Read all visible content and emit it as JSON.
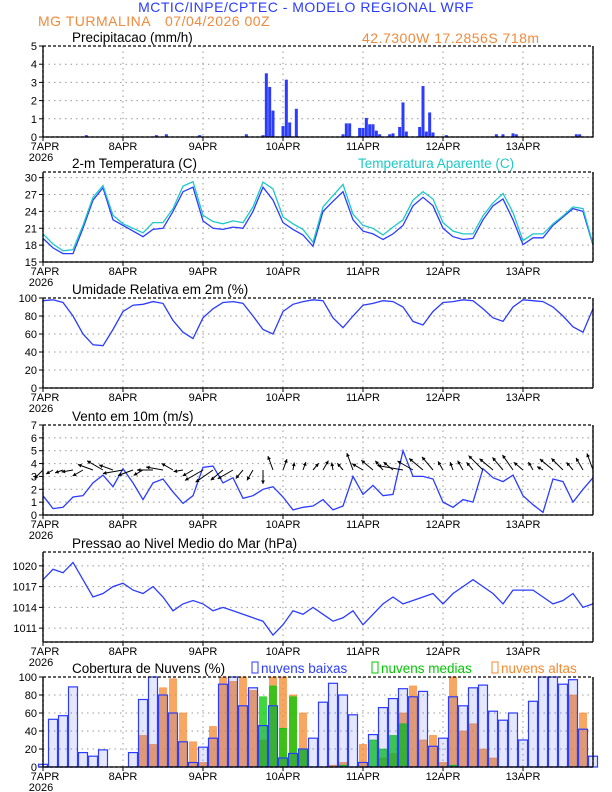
{
  "header": {
    "title": "MCTIC/INPE/CPTEC - MODELO REGIONAL WRF",
    "station": "MG TURMALINA",
    "run_date": "07/04/2026 00Z",
    "location": "42.7300W 17.2856S 718m"
  },
  "x_axis": {
    "day_labels": [
      "7APR",
      "8APR",
      "9APR",
      "10APR",
      "11APR",
      "12APR",
      "13APR"
    ],
    "year_label": "2026",
    "range": [
      "2026-04-07T00",
      "2026-04-13T21"
    ]
  },
  "colors": {
    "blue": "#2b3cff",
    "cyan": "#1ec8c8",
    "green": "#00c800",
    "orange": "#f5892f",
    "wind_arrow": "#000000"
  },
  "chart_data": [
    {
      "id": "precip",
      "type": "bar",
      "title": "Precipitacao (mm/h)",
      "ylim": [
        0,
        5
      ],
      "yticks": [
        0,
        1,
        2,
        3,
        4,
        5
      ],
      "grid": true,
      "bars": [
        {
          "t": "2026-04-07T13",
          "v": 0.1
        },
        {
          "t": "2026-04-08T10",
          "v": 0.1
        },
        {
          "t": "2026-04-08T13",
          "v": 0.15
        },
        {
          "t": "2026-04-08T23",
          "v": 0.1
        },
        {
          "t": "2026-04-09T13",
          "v": 0.15
        },
        {
          "t": "2026-04-09T18",
          "v": 0.1
        },
        {
          "t": "2026-04-09T19",
          "v": 3.5
        },
        {
          "t": "2026-04-09T20",
          "v": 2.75
        },
        {
          "t": "2026-04-09T21",
          "v": 1.45
        },
        {
          "t": "2026-04-10T00",
          "v": 0.6
        },
        {
          "t": "2026-04-10T01",
          "v": 3.15
        },
        {
          "t": "2026-04-10T02",
          "v": 0.8
        },
        {
          "t": "2026-04-10T04",
          "v": 1.55
        },
        {
          "t": "2026-04-10T18",
          "v": 0.15
        },
        {
          "t": "2026-04-10T19",
          "v": 0.75
        },
        {
          "t": "2026-04-10T20",
          "v": 0.75
        },
        {
          "t": "2026-04-10T23",
          "v": 0.5
        },
        {
          "t": "2026-04-11T00",
          "v": 0.5
        },
        {
          "t": "2026-04-11T01",
          "v": 1.05
        },
        {
          "t": "2026-04-11T02",
          "v": 0.7
        },
        {
          "t": "2026-04-11T03",
          "v": 0.7
        },
        {
          "t": "2026-04-11T04",
          "v": 0.35
        },
        {
          "t": "2026-04-11T05",
          "v": 0.15
        },
        {
          "t": "2026-04-11T08",
          "v": 0.15
        },
        {
          "t": "2026-04-11T09",
          "v": 0.2
        },
        {
          "t": "2026-04-11T11",
          "v": 0.55
        },
        {
          "t": "2026-04-11T12",
          "v": 1.9
        },
        {
          "t": "2026-04-11T13",
          "v": 0.3
        },
        {
          "t": "2026-04-11T17",
          "v": 0.55
        },
        {
          "t": "2026-04-11T18",
          "v": 2.8
        },
        {
          "t": "2026-04-11T19",
          "v": 0.3
        },
        {
          "t": "2026-04-11T20",
          "v": 1.35
        },
        {
          "t": "2026-04-11T21",
          "v": 0.25
        },
        {
          "t": "2026-04-12T01",
          "v": 0.1
        },
        {
          "t": "2026-04-12T16",
          "v": 0.15
        },
        {
          "t": "2026-04-12T18",
          "v": 0.15
        },
        {
          "t": "2026-04-12T21",
          "v": 0.2
        },
        {
          "t": "2026-04-12T22",
          "v": 0.15
        },
        {
          "t": "2026-04-13T16",
          "v": 0.15
        },
        {
          "t": "2026-04-13T17",
          "v": 0.15
        }
      ]
    },
    {
      "id": "temperature",
      "type": "line",
      "title": "2-m Temperatura (C)",
      "ylim": [
        15,
        31
      ],
      "yticks": [
        15,
        18,
        21,
        24,
        27,
        30
      ],
      "grid": true,
      "series": [
        {
          "name": "",
          "color_key": "blue",
          "values": [
            19.2,
            17.5,
            16.5,
            16.5,
            21,
            26,
            28.2,
            22.5,
            21.5,
            20.5,
            19.5,
            20.8,
            21,
            24,
            27.5,
            28.3,
            22.3,
            21,
            20.8,
            21.2,
            21,
            24,
            28.3,
            26,
            22,
            20.8,
            19.8,
            17.8,
            24,
            25.8,
            27.5,
            22.5,
            20.5,
            20,
            19,
            20,
            21.5,
            25,
            26.5,
            25,
            21,
            19.5,
            19,
            19.2,
            22.5,
            25,
            26.2,
            22.5,
            18.1,
            19.3,
            19.3,
            21.5,
            23,
            24.5,
            24,
            18
          ]
        },
        {
          "name": "Temperatura Aparente (C)",
          "color_key": "cyan",
          "values": [
            20,
            18.2,
            17,
            17.2,
            21.5,
            26.5,
            28.6,
            23.3,
            21.8,
            21,
            20.2,
            22,
            22,
            24.5,
            28.5,
            29.3,
            23.3,
            22.2,
            21.8,
            22.3,
            22,
            24.8,
            29.2,
            28,
            23,
            21.8,
            20.8,
            18.5,
            24.8,
            26.8,
            28.8,
            23.5,
            21.5,
            21,
            19.8,
            21.2,
            22.5,
            26,
            27.5,
            26.2,
            22,
            20.5,
            20,
            20,
            23.2,
            25.5,
            27.2,
            23.8,
            18.8,
            20,
            20,
            21.8,
            23.2,
            24.8,
            24.5,
            18.2
          ]
        }
      ]
    },
    {
      "id": "humidity",
      "type": "line",
      "title": "Umidade Relativa em 2m (%)",
      "ylim": [
        0,
        100
      ],
      "yticks": [
        0,
        20,
        40,
        60,
        80,
        100
      ],
      "grid": true,
      "series": [
        {
          "name": "",
          "color_key": "blue",
          "values": [
            97,
            98,
            95,
            80,
            60,
            48,
            47,
            65,
            85,
            92,
            93,
            96,
            94,
            75,
            62,
            55,
            78,
            88,
            95,
            96,
            94,
            80,
            65,
            60,
            85,
            93,
            96,
            98,
            97,
            78,
            67,
            80,
            92,
            94,
            97,
            96,
            90,
            74,
            70,
            85,
            95,
            96,
            98,
            97,
            88,
            78,
            74,
            90,
            98,
            97,
            96,
            90,
            80,
            68,
            62,
            88
          ]
        }
      ]
    },
    {
      "id": "wind",
      "type": "line",
      "title": "Vento em 10m (m/s)",
      "ylim": [
        0,
        7
      ],
      "yticks": [
        0,
        1,
        2,
        3,
        4,
        5,
        6,
        7
      ],
      "grid": true,
      "series": [
        {
          "name": "",
          "color_key": "blue",
          "values": [
            1.5,
            0.5,
            0.6,
            1.4,
            1.5,
            2.5,
            3.1,
            2.2,
            3.6,
            2.5,
            1.2,
            2.5,
            2.8,
            1.8,
            0.9,
            1.5,
            3.7,
            3.8,
            2.5,
            2.9,
            1.3,
            1.5,
            2.0,
            2.2,
            1.4,
            0.4,
            0.6,
            0.7,
            1.2,
            0.4,
            0.7,
            3.0,
            1.6,
            2.3,
            1.5,
            1.6,
            5.0,
            3.0,
            3.0,
            2.8,
            1.0,
            0.6,
            1.2,
            1.0,
            3.6,
            2.9,
            2.6,
            3.1,
            1.5,
            0.8,
            0.2,
            2.8,
            2.6,
            1.0,
            2.0,
            2.9
          ]
        }
      ],
      "wind_direction_deg": [
        45,
        60,
        70,
        80,
        60,
        110,
        120,
        110,
        80,
        70,
        60,
        90,
        100,
        120,
        80,
        60,
        60,
        55,
        50,
        60,
        40,
        30,
        0,
        160,
        200,
        190,
        200,
        220,
        210,
        170,
        140,
        160,
        120,
        130,
        140,
        130,
        100,
        120,
        130,
        140,
        150,
        160,
        150,
        140,
        135,
        130,
        140,
        145,
        130,
        150,
        120,
        130,
        135,
        140,
        150,
        160
      ],
      "wind_arrow_baseline": 3.5
    },
    {
      "id": "pressure",
      "type": "line",
      "title": "Pressao ao Nivel Medio do Mar (hPa)",
      "ylim": [
        1009,
        1022
      ],
      "yticks": [
        1011,
        1014,
        1017,
        1020
      ],
      "grid": true,
      "series": [
        {
          "name": "",
          "color_key": "blue",
          "values": [
            1018,
            1019.5,
            1019,
            1020.5,
            1018,
            1015.5,
            1016,
            1017,
            1017.5,
            1016.5,
            1016,
            1017,
            1015.5,
            1013.5,
            1014.5,
            1015,
            1014.5,
            1013.5,
            1014,
            1013.5,
            1013,
            1012.5,
            1012,
            1010,
            1011.5,
            1013.5,
            1013,
            1014,
            1013,
            1012,
            1012.5,
            1013.5,
            1011.5,
            1013,
            1014.5,
            1015.5,
            1014.5,
            1015,
            1015.5,
            1016,
            1014.5,
            1016,
            1017,
            1018,
            1017,
            1016,
            1014.5,
            1016.5,
            1016.5,
            1016.5,
            1015.5,
            1014.5,
            1015,
            1016,
            1014,
            1014.5
          ]
        }
      ]
    },
    {
      "id": "clouds",
      "type": "bar",
      "title": "Cobertura de Nuvens (%)",
      "ylim": [
        0,
        100
      ],
      "yticks": [
        0,
        20,
        40,
        60,
        80,
        100
      ],
      "grid": true,
      "legend_placement": "top",
      "series": [
        {
          "name": "nuvens baixas",
          "color_key": "blue",
          "values": [
            3,
            53,
            57,
            89,
            16,
            12,
            19,
            0,
            0,
            16,
            75,
            100,
            80,
            60,
            28,
            5,
            22,
            32,
            92,
            100,
            68,
            88,
            46,
            68,
            10,
            15,
            20,
            32,
            72,
            93,
            80,
            58,
            5,
            36,
            66,
            76,
            87,
            78,
            84,
            23,
            32,
            78,
            68,
            88,
            91,
            62,
            52,
            60,
            30,
            73,
            100,
            100,
            92,
            97,
            42,
            12
          ]
        },
        {
          "name": "nuvens medias",
          "color_key": "green",
          "values": [
            0,
            0,
            0,
            0,
            0,
            0,
            0,
            0,
            0,
            0,
            0,
            0,
            0,
            0,
            0,
            0,
            0,
            0,
            0,
            0,
            0,
            0,
            78,
            90,
            43,
            78,
            20,
            0,
            0,
            0,
            2,
            0,
            0,
            30,
            20,
            35,
            48,
            0,
            0,
            0,
            0,
            2,
            0,
            0,
            0,
            0,
            0,
            0,
            0,
            0,
            0,
            0,
            0,
            0,
            0,
            0
          ]
        },
        {
          "name": "nuvens altas",
          "color_key": "orange",
          "values": [
            0,
            0,
            0,
            0,
            0,
            0,
            0,
            0,
            0,
            0,
            35,
            25,
            88,
            98,
            60,
            28,
            5,
            45,
            100,
            95,
            100,
            85,
            30,
            100,
            100,
            80,
            60,
            0,
            0,
            2,
            5,
            0,
            25,
            0,
            10,
            15,
            60,
            90,
            30,
            35,
            5,
            100,
            40,
            48,
            20,
            10,
            0,
            0,
            0,
            0,
            0,
            0,
            0,
            80,
            60,
            0
          ]
        }
      ]
    }
  ]
}
